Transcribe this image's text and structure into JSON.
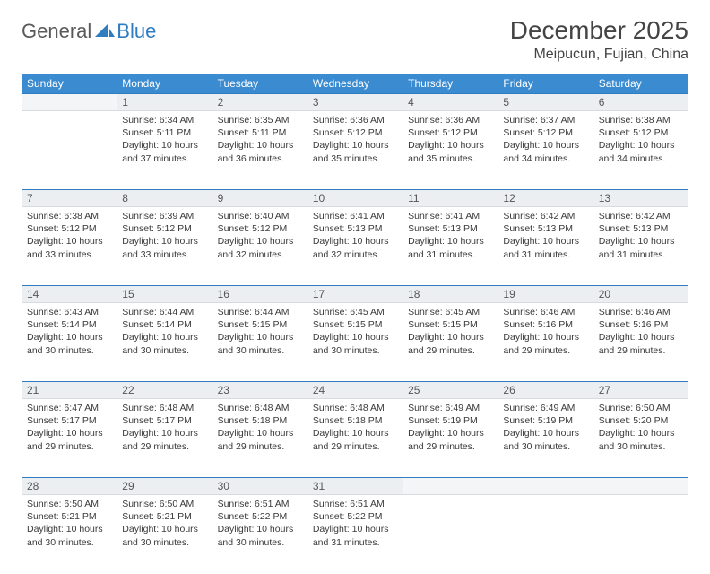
{
  "brand": {
    "text1": "General",
    "text2": "Blue"
  },
  "title": "December 2025",
  "location": "Meipucun, Fujian, China",
  "colors": {
    "header_bg": "#3a8bd0",
    "header_text": "#ffffff",
    "accent_border": "#2f7dc0",
    "daynum_bg": "#eceff1",
    "text": "#3a3a3a"
  },
  "weekdays": [
    "Sunday",
    "Monday",
    "Tuesday",
    "Wednesday",
    "Thursday",
    "Friday",
    "Saturday"
  ],
  "weeks": [
    [
      null,
      {
        "n": "1",
        "sr": "Sunrise: 6:34 AM",
        "ss": "Sunset: 5:11 PM",
        "d1": "Daylight: 10 hours",
        "d2": "and 37 minutes."
      },
      {
        "n": "2",
        "sr": "Sunrise: 6:35 AM",
        "ss": "Sunset: 5:11 PM",
        "d1": "Daylight: 10 hours",
        "d2": "and 36 minutes."
      },
      {
        "n": "3",
        "sr": "Sunrise: 6:36 AM",
        "ss": "Sunset: 5:12 PM",
        "d1": "Daylight: 10 hours",
        "d2": "and 35 minutes."
      },
      {
        "n": "4",
        "sr": "Sunrise: 6:36 AM",
        "ss": "Sunset: 5:12 PM",
        "d1": "Daylight: 10 hours",
        "d2": "and 35 minutes."
      },
      {
        "n": "5",
        "sr": "Sunrise: 6:37 AM",
        "ss": "Sunset: 5:12 PM",
        "d1": "Daylight: 10 hours",
        "d2": "and 34 minutes."
      },
      {
        "n": "6",
        "sr": "Sunrise: 6:38 AM",
        "ss": "Sunset: 5:12 PM",
        "d1": "Daylight: 10 hours",
        "d2": "and 34 minutes."
      }
    ],
    [
      {
        "n": "7",
        "sr": "Sunrise: 6:38 AM",
        "ss": "Sunset: 5:12 PM",
        "d1": "Daylight: 10 hours",
        "d2": "and 33 minutes."
      },
      {
        "n": "8",
        "sr": "Sunrise: 6:39 AM",
        "ss": "Sunset: 5:12 PM",
        "d1": "Daylight: 10 hours",
        "d2": "and 33 minutes."
      },
      {
        "n": "9",
        "sr": "Sunrise: 6:40 AM",
        "ss": "Sunset: 5:12 PM",
        "d1": "Daylight: 10 hours",
        "d2": "and 32 minutes."
      },
      {
        "n": "10",
        "sr": "Sunrise: 6:41 AM",
        "ss": "Sunset: 5:13 PM",
        "d1": "Daylight: 10 hours",
        "d2": "and 32 minutes."
      },
      {
        "n": "11",
        "sr": "Sunrise: 6:41 AM",
        "ss": "Sunset: 5:13 PM",
        "d1": "Daylight: 10 hours",
        "d2": "and 31 minutes."
      },
      {
        "n": "12",
        "sr": "Sunrise: 6:42 AM",
        "ss": "Sunset: 5:13 PM",
        "d1": "Daylight: 10 hours",
        "d2": "and 31 minutes."
      },
      {
        "n": "13",
        "sr": "Sunrise: 6:42 AM",
        "ss": "Sunset: 5:13 PM",
        "d1": "Daylight: 10 hours",
        "d2": "and 31 minutes."
      }
    ],
    [
      {
        "n": "14",
        "sr": "Sunrise: 6:43 AM",
        "ss": "Sunset: 5:14 PM",
        "d1": "Daylight: 10 hours",
        "d2": "and 30 minutes."
      },
      {
        "n": "15",
        "sr": "Sunrise: 6:44 AM",
        "ss": "Sunset: 5:14 PM",
        "d1": "Daylight: 10 hours",
        "d2": "and 30 minutes."
      },
      {
        "n": "16",
        "sr": "Sunrise: 6:44 AM",
        "ss": "Sunset: 5:15 PM",
        "d1": "Daylight: 10 hours",
        "d2": "and 30 minutes."
      },
      {
        "n": "17",
        "sr": "Sunrise: 6:45 AM",
        "ss": "Sunset: 5:15 PM",
        "d1": "Daylight: 10 hours",
        "d2": "and 30 minutes."
      },
      {
        "n": "18",
        "sr": "Sunrise: 6:45 AM",
        "ss": "Sunset: 5:15 PM",
        "d1": "Daylight: 10 hours",
        "d2": "and 29 minutes."
      },
      {
        "n": "19",
        "sr": "Sunrise: 6:46 AM",
        "ss": "Sunset: 5:16 PM",
        "d1": "Daylight: 10 hours",
        "d2": "and 29 minutes."
      },
      {
        "n": "20",
        "sr": "Sunrise: 6:46 AM",
        "ss": "Sunset: 5:16 PM",
        "d1": "Daylight: 10 hours",
        "d2": "and 29 minutes."
      }
    ],
    [
      {
        "n": "21",
        "sr": "Sunrise: 6:47 AM",
        "ss": "Sunset: 5:17 PM",
        "d1": "Daylight: 10 hours",
        "d2": "and 29 minutes."
      },
      {
        "n": "22",
        "sr": "Sunrise: 6:48 AM",
        "ss": "Sunset: 5:17 PM",
        "d1": "Daylight: 10 hours",
        "d2": "and 29 minutes."
      },
      {
        "n": "23",
        "sr": "Sunrise: 6:48 AM",
        "ss": "Sunset: 5:18 PM",
        "d1": "Daylight: 10 hours",
        "d2": "and 29 minutes."
      },
      {
        "n": "24",
        "sr": "Sunrise: 6:48 AM",
        "ss": "Sunset: 5:18 PM",
        "d1": "Daylight: 10 hours",
        "d2": "and 29 minutes."
      },
      {
        "n": "25",
        "sr": "Sunrise: 6:49 AM",
        "ss": "Sunset: 5:19 PM",
        "d1": "Daylight: 10 hours",
        "d2": "and 29 minutes."
      },
      {
        "n": "26",
        "sr": "Sunrise: 6:49 AM",
        "ss": "Sunset: 5:19 PM",
        "d1": "Daylight: 10 hours",
        "d2": "and 30 minutes."
      },
      {
        "n": "27",
        "sr": "Sunrise: 6:50 AM",
        "ss": "Sunset: 5:20 PM",
        "d1": "Daylight: 10 hours",
        "d2": "and 30 minutes."
      }
    ],
    [
      {
        "n": "28",
        "sr": "Sunrise: 6:50 AM",
        "ss": "Sunset: 5:21 PM",
        "d1": "Daylight: 10 hours",
        "d2": "and 30 minutes."
      },
      {
        "n": "29",
        "sr": "Sunrise: 6:50 AM",
        "ss": "Sunset: 5:21 PM",
        "d1": "Daylight: 10 hours",
        "d2": "and 30 minutes."
      },
      {
        "n": "30",
        "sr": "Sunrise: 6:51 AM",
        "ss": "Sunset: 5:22 PM",
        "d1": "Daylight: 10 hours",
        "d2": "and 30 minutes."
      },
      {
        "n": "31",
        "sr": "Sunrise: 6:51 AM",
        "ss": "Sunset: 5:22 PM",
        "d1": "Daylight: 10 hours",
        "d2": "and 31 minutes."
      },
      null,
      null,
      null
    ]
  ]
}
